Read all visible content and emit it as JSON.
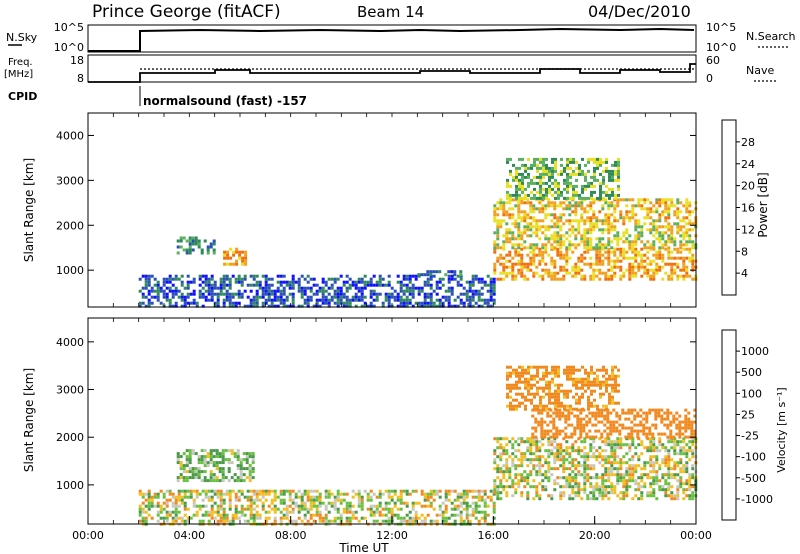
{
  "header": {
    "station": "Prince George (fitACF)",
    "beam": "Beam 14",
    "date": "04/Dec/2010"
  },
  "noise_panel": {
    "left_label": "N.Sky",
    "right_label": "N.Search",
    "left_ticks": [
      "10^5",
      "10^0"
    ],
    "right_ticks": [
      "10^5",
      "10^0"
    ]
  },
  "freq_panel": {
    "left_label_line1": "Freq.",
    "left_label_line2": "[MHz]",
    "right_label": "Nave",
    "left_ticks": [
      "18",
      "8"
    ],
    "right_ticks": [
      "60",
      "0"
    ]
  },
  "cpid": {
    "label": "CPID",
    "text": "normalsound (fast) -157"
  },
  "chart_data": [
    {
      "type": "heatmap",
      "title": "",
      "ylabel": "Slant Range [km]",
      "xlabel": "",
      "ylim": [
        180,
        4500
      ],
      "y_ticks": [
        "1000",
        "2000",
        "3000",
        "4000"
      ],
      "colorbar": {
        "label": "Power [dB]",
        "ticks": [
          "4",
          "8",
          "12",
          "16",
          "20",
          "24",
          "28"
        ],
        "colors": [
          "#1010ff",
          "#2a52b4",
          "#2f8a5a",
          "#5ab060",
          "#e8e020",
          "#f0a020",
          "#f07010",
          "#e02010"
        ]
      },
      "regions": [
        {
          "t_start": "02:00",
          "t_end": "16:00",
          "r_min": 200,
          "r_max": 900,
          "value_db": 6
        },
        {
          "t_start": "03:30",
          "t_end": "05:00",
          "r_min": 1400,
          "r_max": 1750,
          "value_db": 10
        },
        {
          "t_start": "05:20",
          "t_end": "06:10",
          "r_min": 1100,
          "r_max": 1500,
          "value_db": 22
        },
        {
          "t_start": "13:00",
          "t_end": "14:40",
          "r_min": 900,
          "r_max": 1000,
          "value_db": 8
        },
        {
          "t_start": "16:00",
          "t_end": "24:00",
          "r_min": 800,
          "r_max": 1500,
          "value_db": 22
        },
        {
          "t_start": "16:00",
          "t_end": "24:00",
          "r_min": 1500,
          "r_max": 2000,
          "value_db": 18
        },
        {
          "t_start": "16:00",
          "t_end": "24:00",
          "r_min": 2000,
          "r_max": 2600,
          "value_db": 20
        },
        {
          "t_start": "16:30",
          "t_end": "21:00",
          "r_min": 2600,
          "r_max": 3500,
          "value_db": 14
        }
      ]
    },
    {
      "type": "heatmap",
      "title": "",
      "ylabel": "Slant Range [km]",
      "xlabel": "Time UT",
      "ylim": [
        180,
        4500
      ],
      "y_ticks": [
        "1000",
        "2000",
        "3000",
        "4000"
      ],
      "x_ticks": [
        "00:00",
        "04:00",
        "08:00",
        "12:00",
        "16:00",
        "20:00",
        "00:00"
      ],
      "colorbar": {
        "label": "Velocity [m s⁻¹]",
        "ticks": [
          "1000",
          "500",
          "100",
          "25",
          "-25",
          "-100",
          "-500",
          "-1000"
        ],
        "colors": [
          "#1a3fb8",
          "#2a6a8a",
          "#4a9a4a",
          "#6ac040",
          "#c8c8c0",
          "#f0c020",
          "#f08a20",
          "#f06010",
          "#e01010"
        ]
      },
      "regions": [
        {
          "t_start": "02:00",
          "t_end": "16:00",
          "r_min": 200,
          "r_max": 900,
          "value_ms": 0
        },
        {
          "t_start": "03:30",
          "t_end": "06:30",
          "r_min": 1100,
          "r_max": 1750,
          "value_ms": 100
        },
        {
          "t_start": "16:00",
          "t_end": "24:00",
          "r_min": 700,
          "r_max": 2000,
          "value_ms": 0
        },
        {
          "t_start": "17:30",
          "t_end": "24:00",
          "r_min": 2000,
          "r_max": 2600,
          "value_ms": -300
        },
        {
          "t_start": "16:30",
          "t_end": "21:00",
          "r_min": 2600,
          "r_max": 3500,
          "value_ms": -200
        }
      ]
    }
  ]
}
